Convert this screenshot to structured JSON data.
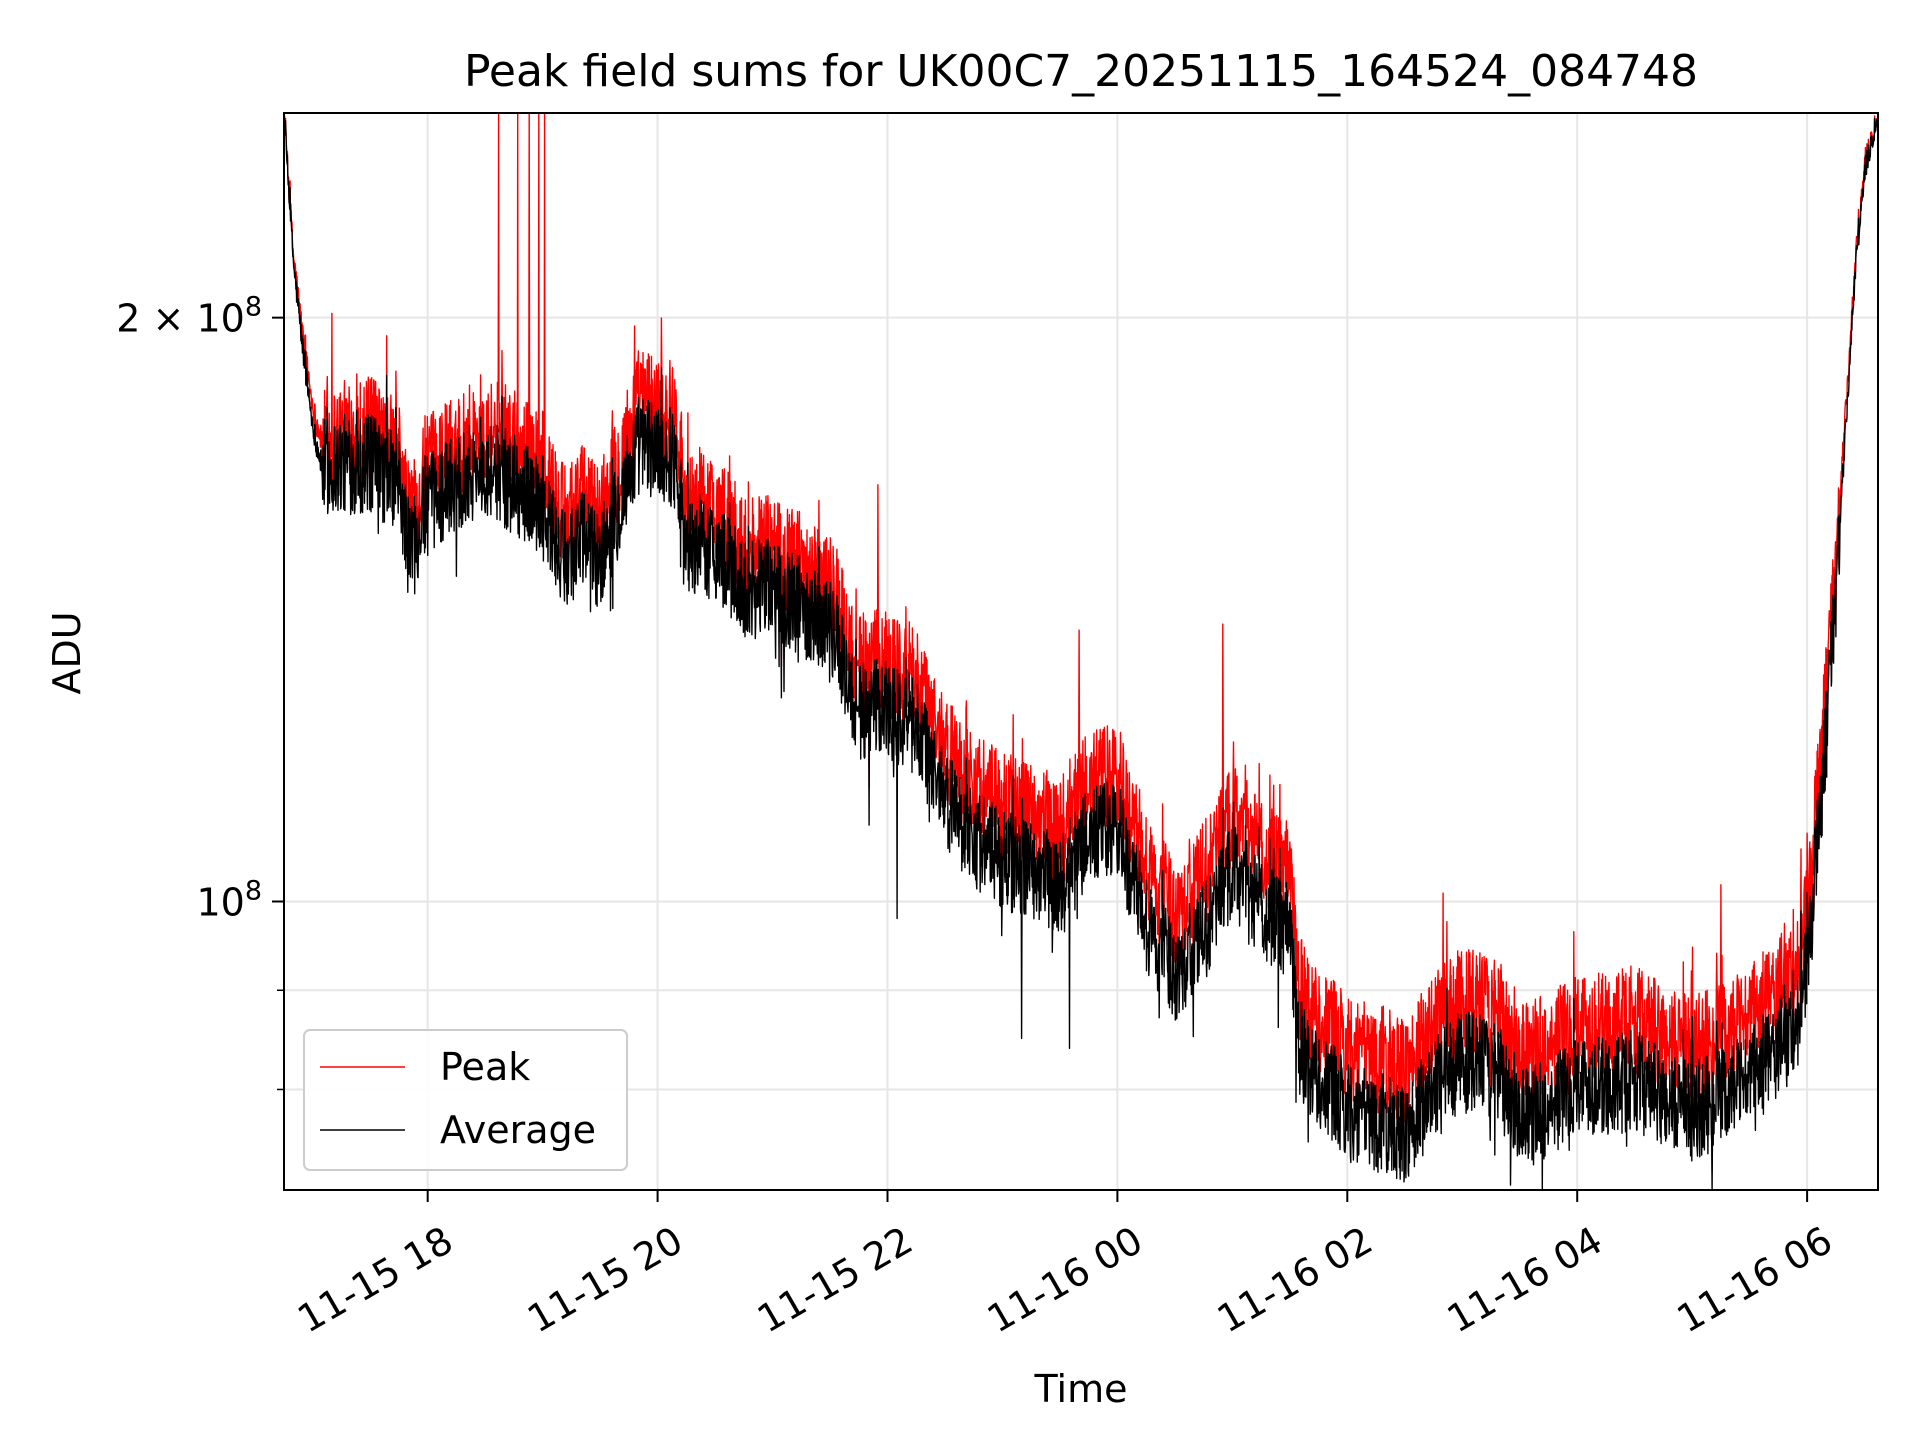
{
  "chart_data": {
    "type": "line",
    "title": "Peak field sums for UK00C7_20251115_164524_084748",
    "xlabel": "Time",
    "ylabel": "ADU",
    "y_scale": "log",
    "ylim": [
      71000000,
      255000000
    ],
    "xlim": [
      "2025-11-15 16:45",
      "2025-11-16 06:37"
    ],
    "grid": true,
    "legend_position": "lower-left",
    "x_ticks": [
      {
        "t": "2025-11-15 18:00",
        "label": "11-15 18"
      },
      {
        "t": "2025-11-15 20:00",
        "label": "11-15 20"
      },
      {
        "t": "2025-11-15 22:00",
        "label": "11-15 22"
      },
      {
        "t": "2025-11-16 00:00",
        "label": "11-16 00"
      },
      {
        "t": "2025-11-16 02:00",
        "label": "11-16 02"
      },
      {
        "t": "2025-11-16 04:00",
        "label": "11-16 04"
      },
      {
        "t": "2025-11-16 06:00",
        "label": "11-16 06"
      }
    ],
    "y_ticks_major": [
      {
        "value": 100000000,
        "base": "10",
        "exp": "8",
        "coef": ""
      },
      {
        "value": 200000000,
        "base": "10",
        "exp": "8",
        "coef": "2 × "
      }
    ],
    "y_ticks_minor": [
      80000000,
      90000000
    ],
    "series": [
      {
        "name": "Peak",
        "color": "#ff0000",
        "points": [
          [
            "2025-11-15 16:45",
            255000000
          ],
          [
            "2025-11-15 16:50",
            215000000
          ],
          [
            "2025-11-15 16:55",
            195000000
          ],
          [
            "2025-11-15 17:00",
            180000000
          ],
          [
            "2025-11-15 17:05",
            172000000
          ],
          [
            "2025-11-15 17:15",
            174000000
          ],
          [
            "2025-11-15 17:30",
            175000000
          ],
          [
            "2025-11-15 17:45",
            170000000
          ],
          [
            "2025-11-15 17:50",
            158000000
          ],
          [
            "2025-11-15 18:00",
            167000000
          ],
          [
            "2025-11-15 18:15",
            172000000
          ],
          [
            "2025-11-15 18:30",
            176000000
          ],
          [
            "2025-11-15 18:45",
            172000000
          ],
          [
            "2025-11-15 19:00",
            168000000
          ],
          [
            "2025-11-15 19:10",
            158000000
          ],
          [
            "2025-11-15 19:20",
            162000000
          ],
          [
            "2025-11-15 19:30",
            158000000
          ],
          [
            "2025-11-15 19:40",
            168000000
          ],
          [
            "2025-11-15 19:50",
            181000000
          ],
          [
            "2025-11-15 20:00",
            180000000
          ],
          [
            "2025-11-15 20:10",
            178000000
          ],
          [
            "2025-11-15 20:15",
            160000000
          ],
          [
            "2025-11-15 20:30",
            160000000
          ],
          [
            "2025-11-15 20:45",
            152000000
          ],
          [
            "2025-11-15 21:00",
            152000000
          ],
          [
            "2025-11-15 21:15",
            149000000
          ],
          [
            "2025-11-15 21:30",
            146000000
          ],
          [
            "2025-11-15 21:45",
            132000000
          ],
          [
            "2025-11-15 22:00",
            133000000
          ],
          [
            "2025-11-15 22:15",
            130000000
          ],
          [
            "2025-11-15 22:30",
            120000000
          ],
          [
            "2025-11-15 22:45",
            115000000
          ],
          [
            "2025-11-15 23:00",
            112000000
          ],
          [
            "2025-11-15 23:15",
            111000000
          ],
          [
            "2025-11-15 23:30",
            109000000
          ],
          [
            "2025-11-15 23:45",
            115000000
          ],
          [
            "2025-11-16 00:00",
            116000000
          ],
          [
            "2025-11-16 00:15",
            104000000
          ],
          [
            "2025-11-16 00:30",
            99000000
          ],
          [
            "2025-11-16 00:45",
            103000000
          ],
          [
            "2025-11-16 01:00",
            111000000
          ],
          [
            "2025-11-16 01:15",
            106000000
          ],
          [
            "2025-11-16 01:30",
            104000000
          ],
          [
            "2025-11-16 01:35",
            90000000
          ],
          [
            "2025-11-16 01:45",
            87000000
          ],
          [
            "2025-11-16 02:00",
            84000000
          ],
          [
            "2025-11-16 02:15",
            83000000
          ],
          [
            "2025-11-16 02:30",
            82000000
          ],
          [
            "2025-11-16 02:45",
            86000000
          ],
          [
            "2025-11-16 03:00",
            89000000
          ],
          [
            "2025-11-16 03:15",
            88000000
          ],
          [
            "2025-11-16 03:30",
            84000000
          ],
          [
            "2025-11-16 03:45",
            84000000
          ],
          [
            "2025-11-16 04:00",
            87000000
          ],
          [
            "2025-11-16 04:15",
            86000000
          ],
          [
            "2025-11-16 04:30",
            87000000
          ],
          [
            "2025-11-16 04:45",
            85000000
          ],
          [
            "2025-11-16 05:00",
            84000000
          ],
          [
            "2025-11-16 05:15",
            85000000
          ],
          [
            "2025-11-16 05:30",
            87000000
          ],
          [
            "2025-11-16 05:45",
            90000000
          ],
          [
            "2025-11-16 05:55",
            93000000
          ],
          [
            "2025-11-16 06:00",
            98000000
          ],
          [
            "2025-11-16 06:05",
            112000000
          ],
          [
            "2025-11-16 06:10",
            128000000
          ],
          [
            "2025-11-16 06:15",
            150000000
          ],
          [
            "2025-11-16 06:20",
            178000000
          ],
          [
            "2025-11-16 06:25",
            212000000
          ],
          [
            "2025-11-16 06:30",
            240000000
          ],
          [
            "2025-11-16 06:37",
            255000000
          ]
        ],
        "spikes": [
          [
            "2025-11-15 18:37",
            255000000
          ],
          [
            "2025-11-15 18:47",
            255000000
          ],
          [
            "2025-11-15 18:53",
            255000000
          ],
          [
            "2025-11-15 18:58",
            255000000
          ],
          [
            "2025-11-15 19:01",
            255000000
          ],
          [
            "2025-11-15 17:10",
            201000000
          ],
          [
            "2025-11-15 19:48",
            198000000
          ],
          [
            "2025-11-15 21:55",
            164000000
          ],
          [
            "2025-11-15 23:40",
            138000000
          ],
          [
            "2025-11-16 00:55",
            139000000
          ],
          [
            "2025-11-16 02:50",
            101000000
          ],
          [
            "2025-11-16 05:15",
            102000000
          ]
        ]
      },
      {
        "name": "Average",
        "color": "#000000",
        "points": [
          [
            "2025-11-15 16:45",
            255000000
          ],
          [
            "2025-11-15 16:50",
            213000000
          ],
          [
            "2025-11-15 16:55",
            192000000
          ],
          [
            "2025-11-15 17:00",
            176000000
          ],
          [
            "2025-11-15 17:05",
            167000000
          ],
          [
            "2025-11-15 17:15",
            168000000
          ],
          [
            "2025-11-15 17:30",
            168000000
          ],
          [
            "2025-11-15 17:45",
            164000000
          ],
          [
            "2025-11-15 17:50",
            152000000
          ],
          [
            "2025-11-15 18:00",
            160000000
          ],
          [
            "2025-11-15 18:15",
            165000000
          ],
          [
            "2025-11-15 18:30",
            168000000
          ],
          [
            "2025-11-15 18:45",
            164000000
          ],
          [
            "2025-11-15 19:00",
            160000000
          ],
          [
            "2025-11-15 19:10",
            150000000
          ],
          [
            "2025-11-15 19:20",
            154000000
          ],
          [
            "2025-11-15 19:30",
            150000000
          ],
          [
            "2025-11-15 19:40",
            160000000
          ],
          [
            "2025-11-15 19:50",
            172000000
          ],
          [
            "2025-11-15 20:00",
            171000000
          ],
          [
            "2025-11-15 20:10",
            169000000
          ],
          [
            "2025-11-15 20:15",
            152000000
          ],
          [
            "2025-11-15 20:30",
            152000000
          ],
          [
            "2025-11-15 20:45",
            145000000
          ],
          [
            "2025-11-15 21:00",
            145000000
          ],
          [
            "2025-11-15 21:15",
            142000000
          ],
          [
            "2025-11-15 21:30",
            139000000
          ],
          [
            "2025-11-15 21:45",
            125000000
          ],
          [
            "2025-11-15 22:00",
            126000000
          ],
          [
            "2025-11-15 22:15",
            123000000
          ],
          [
            "2025-11-15 22:30",
            113000000
          ],
          [
            "2025-11-15 22:45",
            108000000
          ],
          [
            "2025-11-15 23:00",
            105000000
          ],
          [
            "2025-11-15 23:15",
            104000000
          ],
          [
            "2025-11-15 23:30",
            102000000
          ],
          [
            "2025-11-15 23:45",
            108000000
          ],
          [
            "2025-11-16 00:00",
            109000000
          ],
          [
            "2025-11-16 00:15",
            97000000
          ],
          [
            "2025-11-16 00:30",
            92000000
          ],
          [
            "2025-11-16 00:45",
            96000000
          ],
          [
            "2025-11-16 01:00",
            104000000
          ],
          [
            "2025-11-16 01:15",
            99000000
          ],
          [
            "2025-11-16 01:30",
            97000000
          ],
          [
            "2025-11-16 01:35",
            84000000
          ],
          [
            "2025-11-16 01:45",
            81000000
          ],
          [
            "2025-11-16 02:00",
            78000000
          ],
          [
            "2025-11-16 02:15",
            77000000
          ],
          [
            "2025-11-16 02:30",
            76000000
          ],
          [
            "2025-11-16 02:45",
            80000000
          ],
          [
            "2025-11-16 03:00",
            83000000
          ],
          [
            "2025-11-16 03:15",
            82000000
          ],
          [
            "2025-11-16 03:30",
            78000000
          ],
          [
            "2025-11-16 03:45",
            78000000
          ],
          [
            "2025-11-16 04:00",
            81000000
          ],
          [
            "2025-11-16 04:15",
            80000000
          ],
          [
            "2025-11-16 04:30",
            81000000
          ],
          [
            "2025-11-16 04:45",
            79000000
          ],
          [
            "2025-11-16 05:00",
            78000000
          ],
          [
            "2025-11-16 05:15",
            79000000
          ],
          [
            "2025-11-16 05:30",
            81000000
          ],
          [
            "2025-11-16 05:45",
            84000000
          ],
          [
            "2025-11-16 05:55",
            87000000
          ],
          [
            "2025-11-16 06:00",
            92000000
          ],
          [
            "2025-11-16 06:05",
            106000000
          ],
          [
            "2025-11-16 06:10",
            122000000
          ],
          [
            "2025-11-16 06:15",
            145000000
          ],
          [
            "2025-11-16 06:20",
            174000000
          ],
          [
            "2025-11-16 06:25",
            210000000
          ],
          [
            "2025-11-16 06:30",
            238000000
          ],
          [
            "2025-11-16 06:37",
            255000000
          ]
        ],
        "spikes": [
          [
            "2025-11-15 22:05",
            98000000
          ],
          [
            "2025-11-15 23:10",
            85000000
          ],
          [
            "2025-11-15 23:35",
            84000000
          ],
          [
            "2025-11-16 02:35",
            73000000
          ],
          [
            "2025-11-16 05:05",
            74000000
          ]
        ]
      }
    ]
  }
}
